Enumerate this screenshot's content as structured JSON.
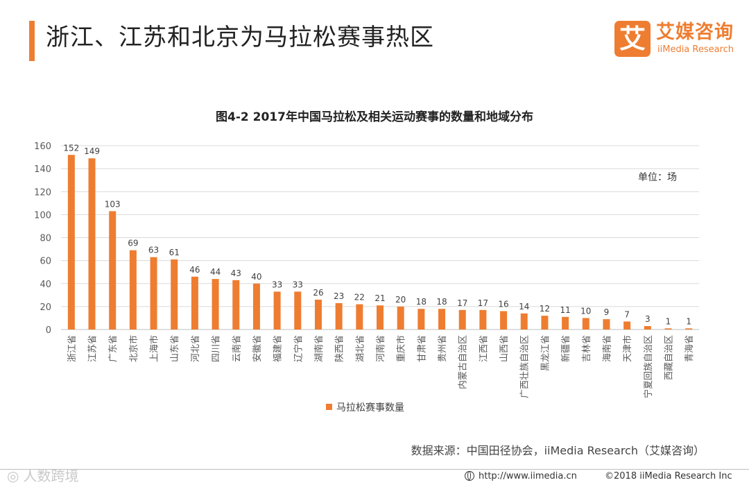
{
  "colors": {
    "accent": "#EE7D31",
    "grid": "#D9D9D9",
    "axis_text": "#595959"
  },
  "page": {
    "title": "浙江、江苏和北京为马拉松赛事热区"
  },
  "logo": {
    "glyph": "艾",
    "name_cn": "艾媒咨询",
    "name_en": "iiMedia Research"
  },
  "chart_data": {
    "type": "bar",
    "title": "图4-2 2017年中国马拉松及相关运动赛事的数量和地域分布",
    "unit_label": "单位：场",
    "categories": [
      "浙江省",
      "江苏省",
      "广东省",
      "北京市",
      "上海市",
      "山东省",
      "河北省",
      "四川省",
      "云南省",
      "安徽省",
      "福建省",
      "辽宁省",
      "湖南省",
      "陕西省",
      "湖北省",
      "河南省",
      "重庆市",
      "甘肃省",
      "贵州省",
      "内蒙古自治区",
      "江西省",
      "山西省",
      "广西壮族自治区",
      "黑龙江省",
      "新疆省",
      "吉林省",
      "海南省",
      "天津市",
      "宁夏回族自治区",
      "西藏自治区",
      "青海省"
    ],
    "series": [
      {
        "name": "马拉松赛事数量",
        "values": [
          152,
          149,
          103,
          69,
          63,
          61,
          46,
          44,
          43,
          40,
          33,
          33,
          26,
          23,
          22,
          21,
          20,
          18,
          18,
          17,
          17,
          16,
          14,
          12,
          11,
          10,
          9,
          7,
          3,
          1,
          1
        ]
      }
    ],
    "ylim": [
      0,
      160
    ],
    "yticks": [
      0,
      20,
      40,
      60,
      80,
      100,
      120,
      140,
      160
    ],
    "legend_position": "bottom",
    "grid": true
  },
  "footer": {
    "source": "数据来源：中国田径协会，iiMedia Research（艾媒咨询）",
    "url": "http://www.iimedia.cn",
    "copyright": "©2018 iiMedia Research Inc",
    "watermark": "人数跨境",
    "watermark_icon": "weibo-icon"
  }
}
